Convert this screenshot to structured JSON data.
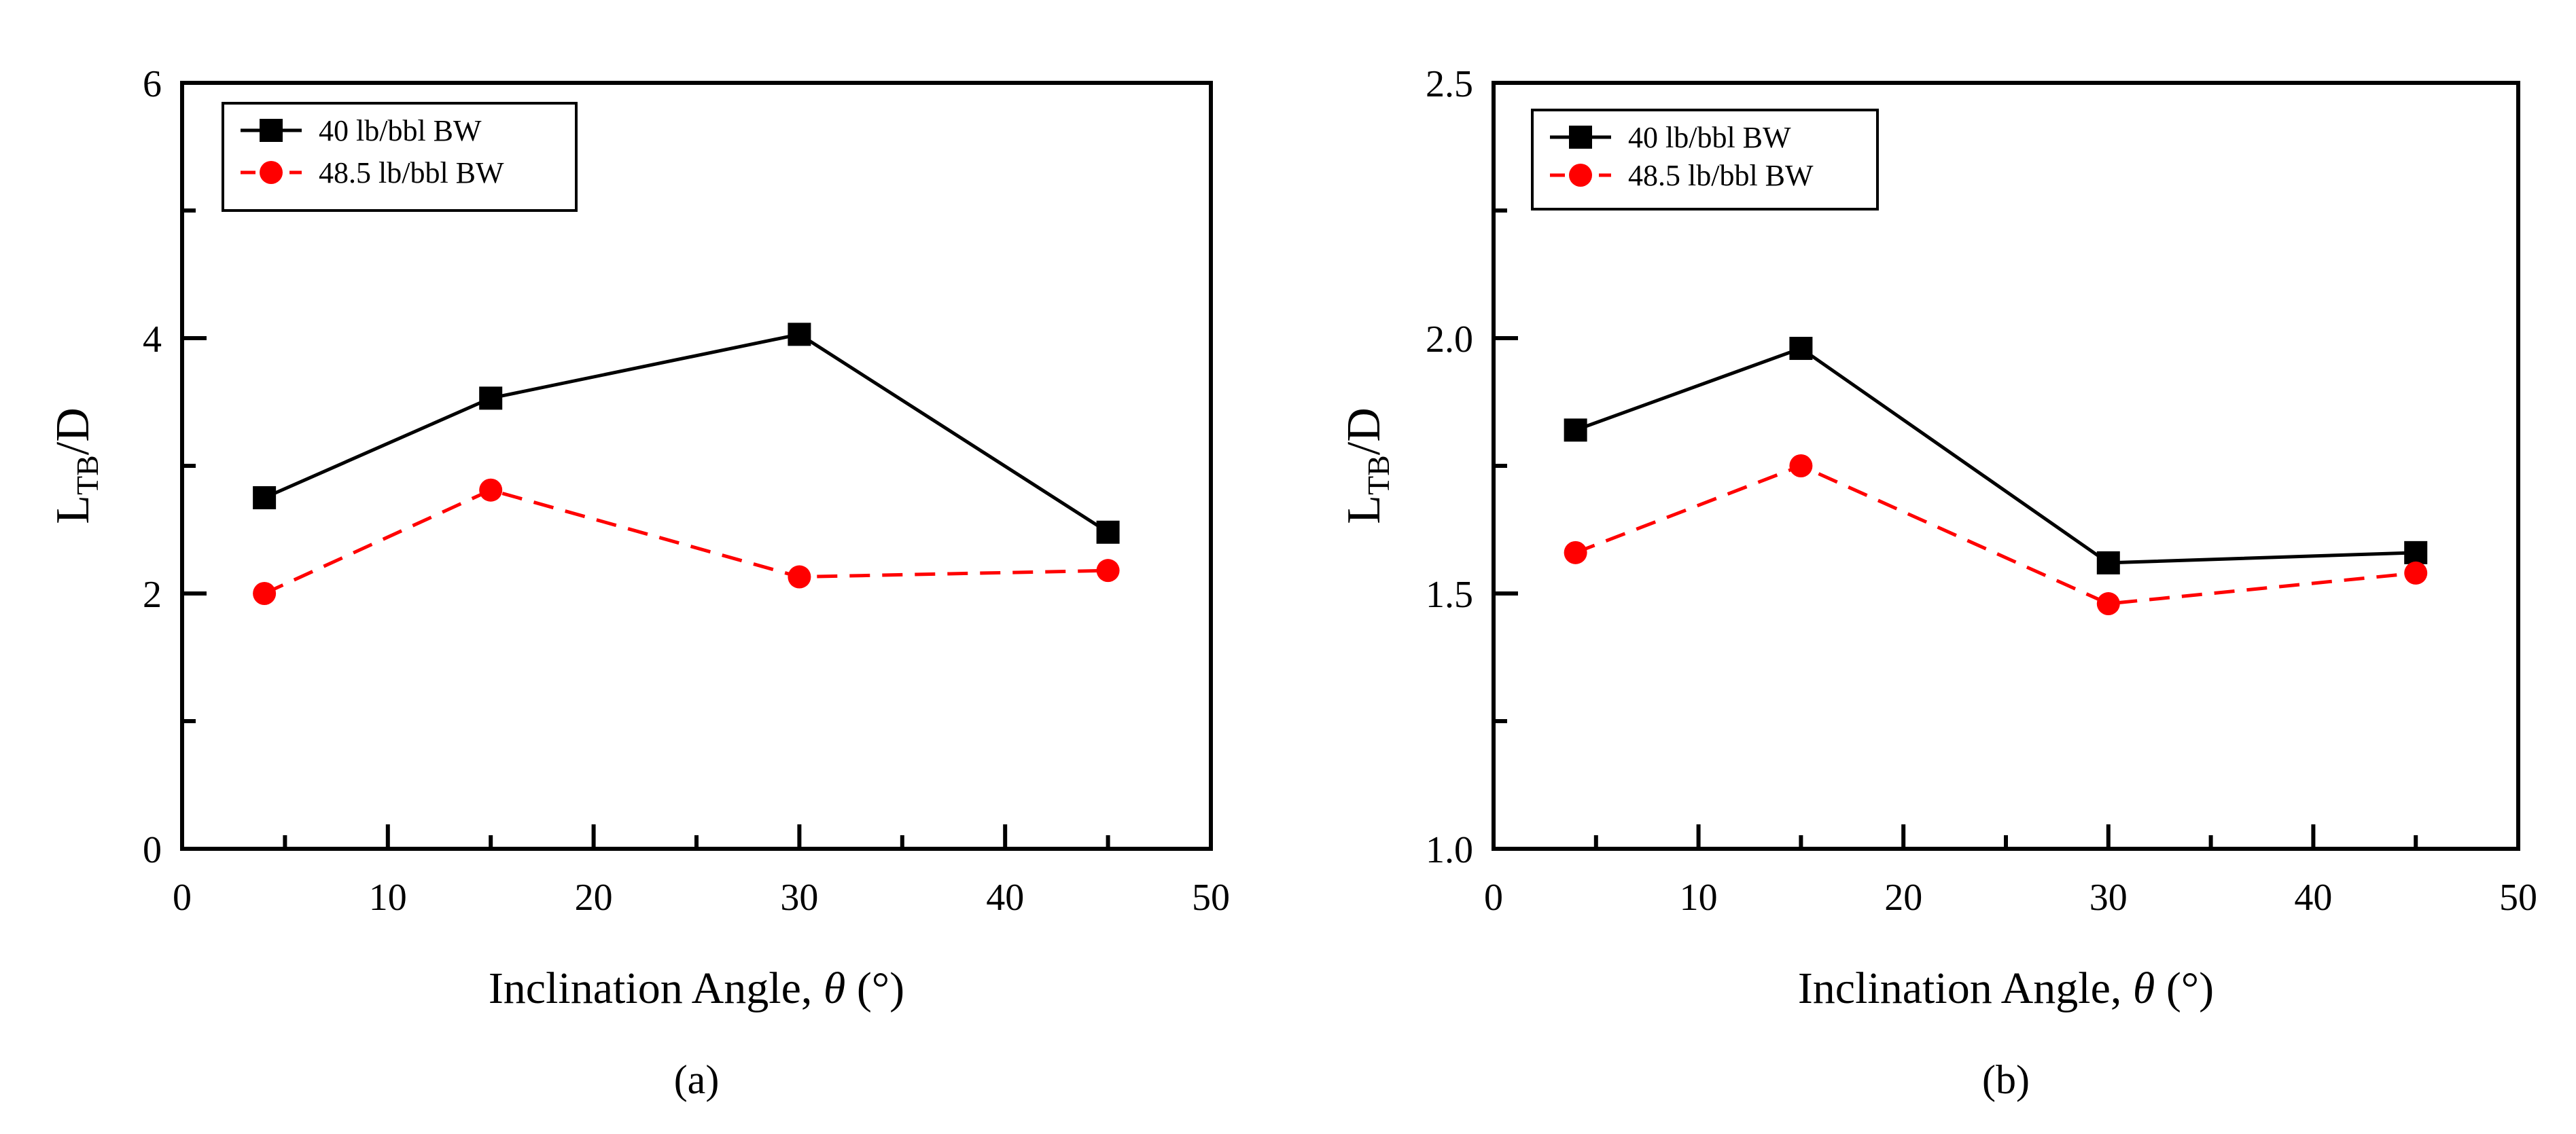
{
  "chart_data": [
    {
      "type": "line",
      "panel_label": "(a)",
      "xlabel": "Inclination Angle, θ (°)",
      "xlabel_prefix": "Inclination Angle, ",
      "xlabel_symbol": "θ",
      "xlabel_suffix": " (°)",
      "ylabel_main": "L",
      "ylabel_sub": "TB",
      "ylabel_tail": "/D",
      "xlim": [
        0,
        50
      ],
      "ylim": [
        0,
        6
      ],
      "xticks": [
        0,
        10,
        20,
        30,
        40,
        50
      ],
      "xtick_labels": [
        "0",
        "10",
        "20",
        "30",
        "40",
        "50"
      ],
      "yticks": [
        0,
        2,
        4,
        6
      ],
      "ytick_labels": [
        "0",
        "2",
        "4",
        "6"
      ],
      "legend_position": "top-left",
      "series": [
        {
          "name": "40 lb/bbl BW",
          "color": "#000000",
          "marker": "square",
          "dash": "solid",
          "x": [
            4,
            15,
            30,
            45
          ],
          "y": [
            2.75,
            3.53,
            4.03,
            2.48
          ]
        },
        {
          "name": "48.5 lb/bbl BW",
          "color": "#ff0000",
          "marker": "circle",
          "dash": "dashed",
          "x": [
            4,
            15,
            30,
            45
          ],
          "y": [
            2.0,
            2.81,
            2.13,
            2.18
          ]
        }
      ]
    },
    {
      "type": "line",
      "panel_label": "(b)",
      "xlabel": "Inclination Angle, θ (°)",
      "xlabel_prefix": "Inclination Angle, ",
      "xlabel_symbol": "θ",
      "xlabel_suffix": " (°)",
      "ylabel_main": "L",
      "ylabel_sub": "TB",
      "ylabel_tail": "/D",
      "xlim": [
        0,
        50
      ],
      "ylim": [
        1.0,
        2.5
      ],
      "xticks": [
        0,
        10,
        20,
        30,
        40,
        50
      ],
      "xtick_labels": [
        "0",
        "10",
        "20",
        "30",
        "40",
        "50"
      ],
      "yticks": [
        1.0,
        1.5,
        2.0,
        2.5
      ],
      "ytick_labels": [
        "1.0",
        "1.5",
        "2.0",
        "2.5"
      ],
      "legend_position": "top-left",
      "series": [
        {
          "name": "40 lb/bbl BW",
          "color": "#000000",
          "marker": "square",
          "dash": "solid",
          "x": [
            4,
            15,
            30,
            45
          ],
          "y": [
            1.82,
            1.98,
            1.56,
            1.58
          ]
        },
        {
          "name": "48.5 lb/bbl BW",
          "color": "#ff0000",
          "marker": "circle",
          "dash": "dashed",
          "x": [
            4,
            15,
            30,
            45
          ],
          "y": [
            1.58,
            1.75,
            1.48,
            1.54
          ]
        }
      ]
    }
  ]
}
